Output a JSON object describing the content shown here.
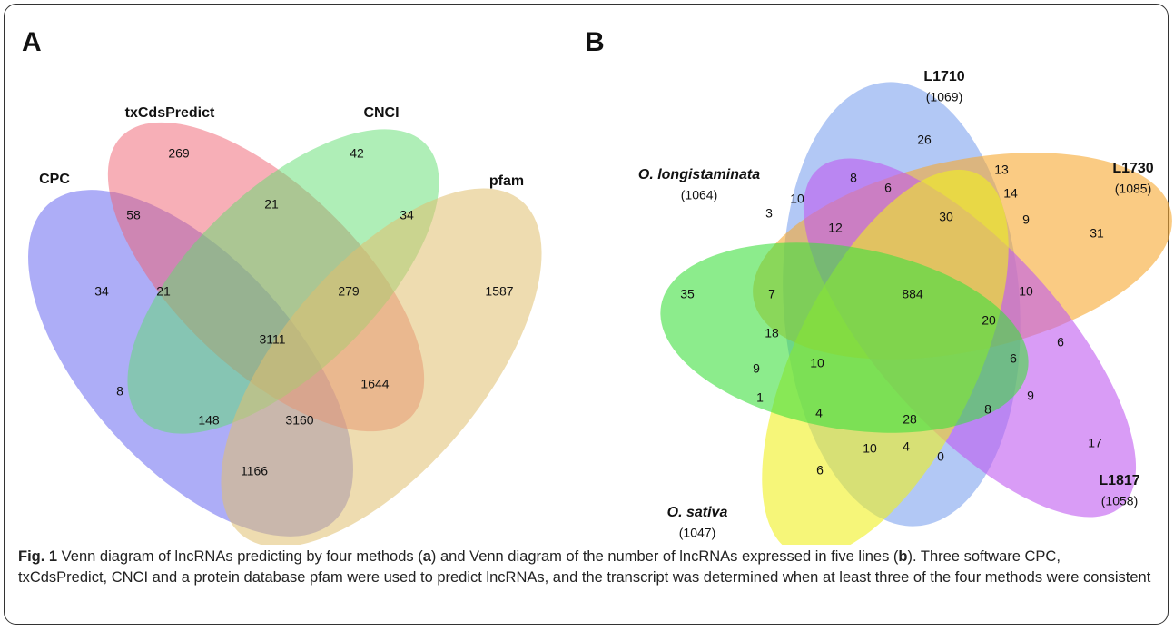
{
  "panels": [
    {
      "label": "A",
      "sets": [
        {
          "name": "CPC"
        },
        {
          "name": "txCdsPredict"
        },
        {
          "name": "CNCI"
        },
        {
          "name": "pfam"
        }
      ],
      "regions": [
        269,
        42,
        58,
        21,
        34,
        34,
        21,
        279,
        1587,
        3111,
        8,
        1644,
        148,
        3160,
        1166
      ]
    },
    {
      "label": "B",
      "sets": [
        {
          "name": "L1710",
          "count": "(1069)"
        },
        {
          "name": "L1730",
          "count": "(1085)"
        },
        {
          "name": "O. longistaminata",
          "count": "(1064)"
        },
        {
          "name": "L1817",
          "count": "(1058)"
        },
        {
          "name": "O. sativa",
          "count": "(1047)"
        }
      ],
      "regions": [
        26,
        8,
        13,
        10,
        6,
        14,
        3,
        12,
        30,
        9,
        31,
        35,
        7,
        10,
        884,
        18,
        20,
        6,
        9,
        10,
        6,
        1,
        9,
        4,
        28,
        8,
        17,
        10,
        4,
        0,
        6
      ]
    }
  ],
  "caption": {
    "label": "Fig. 1",
    "segments": [
      " Venn diagram of lncRNAs predicting by four methods (",
      "a",
      ") and Venn diagram of the number of lncRNAs expressed in five lines (",
      "b",
      "). Three software CPC, txCdsPredict, CNCI and a protein database pfam were used to predict lncRNAs, and the transcript was determined when at least three of the four methods were consistent"
    ]
  }
}
